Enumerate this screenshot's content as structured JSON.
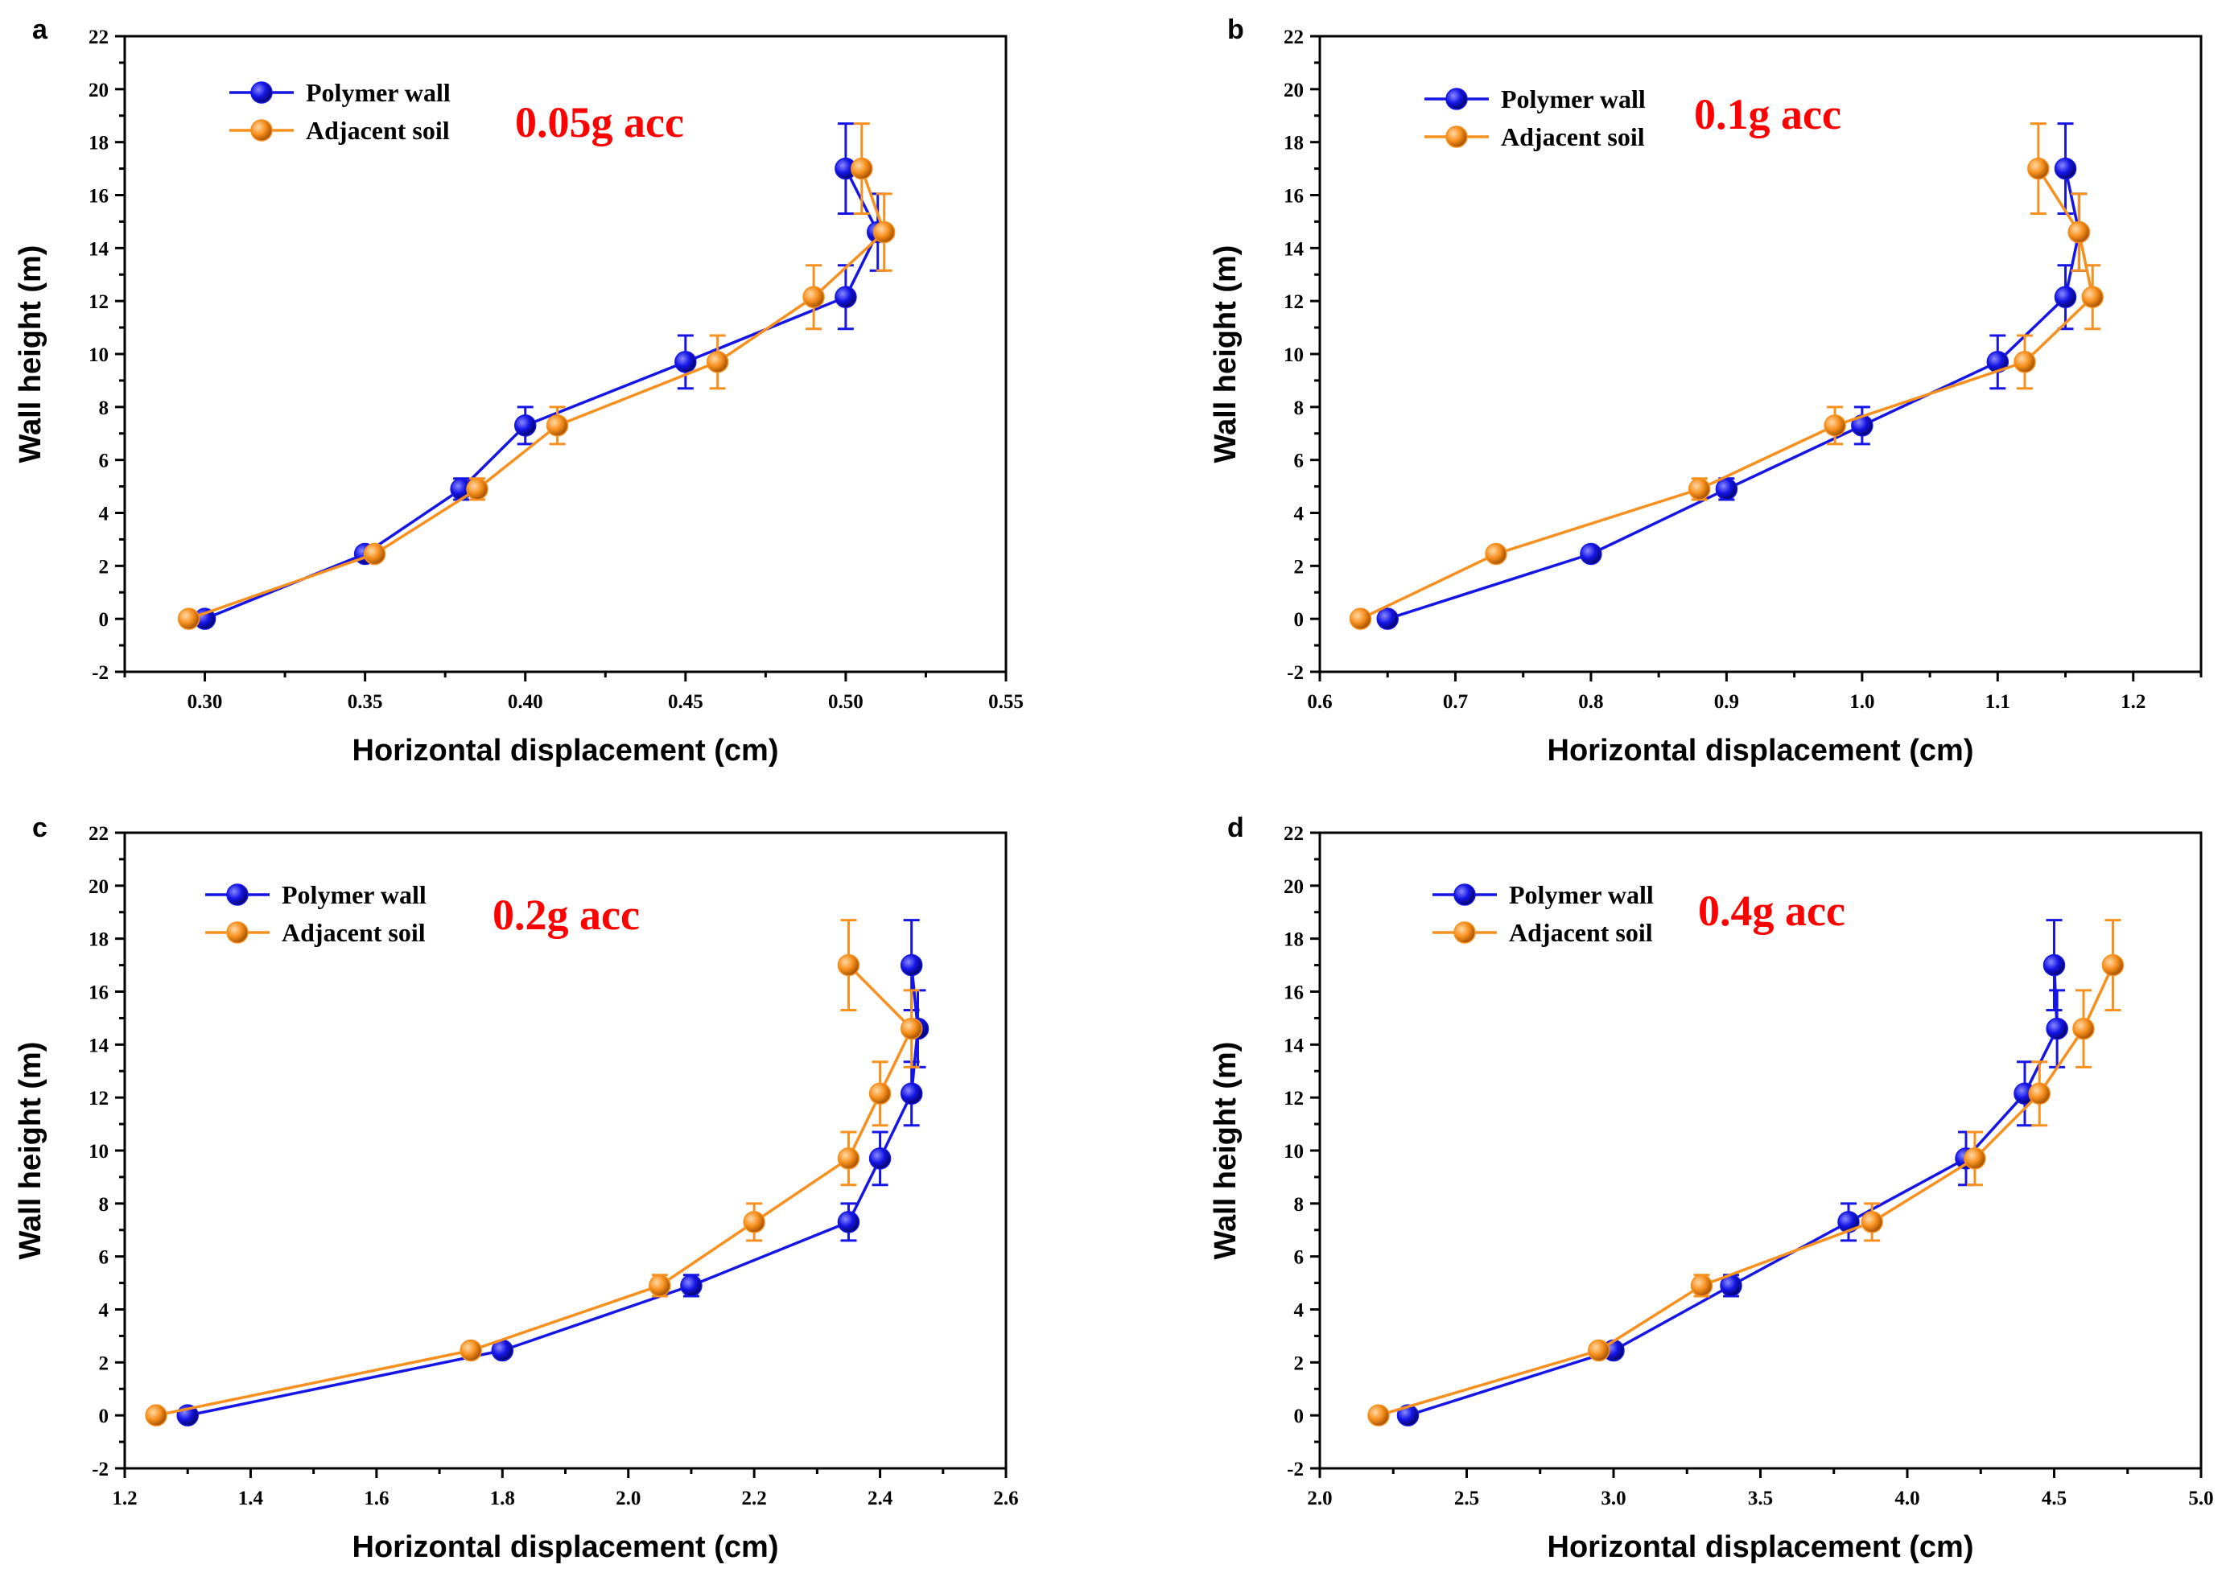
{
  "colors": {
    "polymer": "#1515e6",
    "soil": "#f7901e",
    "annotation": "#ff0000"
  },
  "chart_data": [
    {
      "panel": "a",
      "type": "line",
      "xlabel": "Horizontal displacement (cm)",
      "ylabel": "Wall height (m)",
      "xlim": [
        0.275,
        0.55
      ],
      "ylim": [
        -2,
        22
      ],
      "xticks": [
        0.3,
        0.35,
        0.4,
        0.45,
        0.5,
        0.55
      ],
      "xtick_labels": [
        "0.30",
        "0.35",
        "0.40",
        "0.45",
        "0.50",
        "0.55"
      ],
      "yticks": [
        -2,
        0,
        2,
        4,
        6,
        8,
        10,
        12,
        14,
        16,
        18,
        20,
        22
      ],
      "annotation": "0.05g acc",
      "series": [
        {
          "name": "Polymer wall",
          "x": [
            0.3,
            0.35,
            0.38,
            0.4,
            0.45,
            0.5,
            0.51,
            0.5
          ],
          "y": [
            0,
            2.45,
            4.9,
            7.3,
            9.7,
            12.15,
            14.6,
            17
          ],
          "err": [
            0,
            0.2,
            0.4,
            0.7,
            1.0,
            1.2,
            1.45,
            1.7
          ]
        },
        {
          "name": "Adjacent soil",
          "x": [
            0.295,
            0.353,
            0.385,
            0.41,
            0.46,
            0.49,
            0.512,
            0.505
          ],
          "y": [
            0,
            2.45,
            4.9,
            7.3,
            9.7,
            12.15,
            14.6,
            17
          ],
          "err": [
            0,
            0.2,
            0.4,
            0.7,
            1.0,
            1.2,
            1.45,
            1.7
          ]
        }
      ]
    },
    {
      "panel": "b",
      "type": "line",
      "xlabel": "Horizontal displacement (cm)",
      "ylabel": "Wall height (m)",
      "xlim": [
        0.6,
        1.25
      ],
      "ylim": [
        -2,
        22
      ],
      "xticks": [
        0.6,
        0.7,
        0.8,
        0.9,
        1.0,
        1.1,
        1.2
      ],
      "xtick_labels": [
        "0.6",
        "0.7",
        "0.8",
        "0.9",
        "1.0",
        "1.1",
        "1.2"
      ],
      "yticks": [
        -2,
        0,
        2,
        4,
        6,
        8,
        10,
        12,
        14,
        16,
        18,
        20,
        22
      ],
      "annotation": "0.1g acc",
      "series": [
        {
          "name": "Polymer wall",
          "x": [
            0.65,
            0.8,
            0.9,
            1.0,
            1.1,
            1.15,
            1.16,
            1.15
          ],
          "y": [
            0,
            2.45,
            4.9,
            7.3,
            9.7,
            12.15,
            14.6,
            17
          ],
          "err": [
            0,
            0.2,
            0.4,
            0.7,
            1.0,
            1.2,
            1.45,
            1.7
          ]
        },
        {
          "name": "Adjacent soil",
          "x": [
            0.63,
            0.73,
            0.88,
            0.98,
            1.12,
            1.17,
            1.16,
            1.13
          ],
          "y": [
            0,
            2.45,
            4.9,
            7.3,
            9.7,
            12.15,
            14.6,
            17
          ],
          "err": [
            0,
            0.2,
            0.4,
            0.7,
            1.0,
            1.2,
            1.45,
            1.7
          ]
        }
      ]
    },
    {
      "panel": "c",
      "type": "line",
      "xlabel": "Horizontal displacement (cm)",
      "ylabel": "Wall height (m)",
      "xlim": [
        1.2,
        2.6
      ],
      "ylim": [
        -2,
        22
      ],
      "xticks": [
        1.2,
        1.4,
        1.6,
        1.8,
        2.0,
        2.2,
        2.4,
        2.6
      ],
      "xtick_labels": [
        "1.2",
        "1.4",
        "1.6",
        "1.8",
        "2.0",
        "2.2",
        "2.4",
        "2.6"
      ],
      "yticks": [
        -2,
        0,
        2,
        4,
        6,
        8,
        10,
        12,
        14,
        16,
        18,
        20,
        22
      ],
      "annotation": "0.2g acc",
      "series": [
        {
          "name": "Polymer wall",
          "x": [
            1.3,
            1.8,
            2.1,
            2.35,
            2.4,
            2.45,
            2.46,
            2.45
          ],
          "y": [
            0,
            2.45,
            4.9,
            7.3,
            9.7,
            12.15,
            14.6,
            17
          ],
          "err": [
            0,
            0.2,
            0.4,
            0.7,
            1.0,
            1.2,
            1.45,
            1.7
          ]
        },
        {
          "name": "Adjacent soil",
          "x": [
            1.25,
            1.75,
            2.05,
            2.2,
            2.35,
            2.4,
            2.45,
            2.35
          ],
          "y": [
            0,
            2.45,
            4.9,
            7.3,
            9.7,
            12.15,
            14.6,
            17
          ],
          "err": [
            0,
            0.2,
            0.4,
            0.7,
            1.0,
            1.2,
            1.45,
            1.7
          ]
        }
      ]
    },
    {
      "panel": "d",
      "type": "line",
      "xlabel": "Horizontal displacement (cm)",
      "ylabel": "Wall height (m)",
      "xlim": [
        2.0,
        5.0
      ],
      "ylim": [
        -2,
        22
      ],
      "xticks": [
        2.0,
        2.5,
        3.0,
        3.5,
        4.0,
        4.5,
        5.0
      ],
      "xtick_labels": [
        "2.0",
        "2.5",
        "3.0",
        "3.5",
        "4.0",
        "4.5",
        "5.0"
      ],
      "yticks": [
        -2,
        0,
        2,
        4,
        6,
        8,
        10,
        12,
        14,
        16,
        18,
        20,
        22
      ],
      "annotation": "0.4g acc",
      "series": [
        {
          "name": "Polymer wall",
          "x": [
            2.3,
            3.0,
            3.4,
            3.8,
            4.2,
            4.4,
            4.51,
            4.5
          ],
          "y": [
            0,
            2.45,
            4.9,
            7.3,
            9.7,
            12.15,
            14.6,
            17
          ],
          "err": [
            0,
            0.2,
            0.4,
            0.7,
            1.0,
            1.2,
            1.45,
            1.7
          ]
        },
        {
          "name": "Adjacent soil",
          "x": [
            2.2,
            2.95,
            3.3,
            3.88,
            4.23,
            4.45,
            4.6,
            4.7
          ],
          "y": [
            0,
            2.45,
            4.9,
            7.3,
            9.7,
            12.15,
            14.6,
            17
          ],
          "err": [
            0,
            0.2,
            0.4,
            0.7,
            1.0,
            1.2,
            1.45,
            1.7
          ]
        }
      ]
    }
  ]
}
